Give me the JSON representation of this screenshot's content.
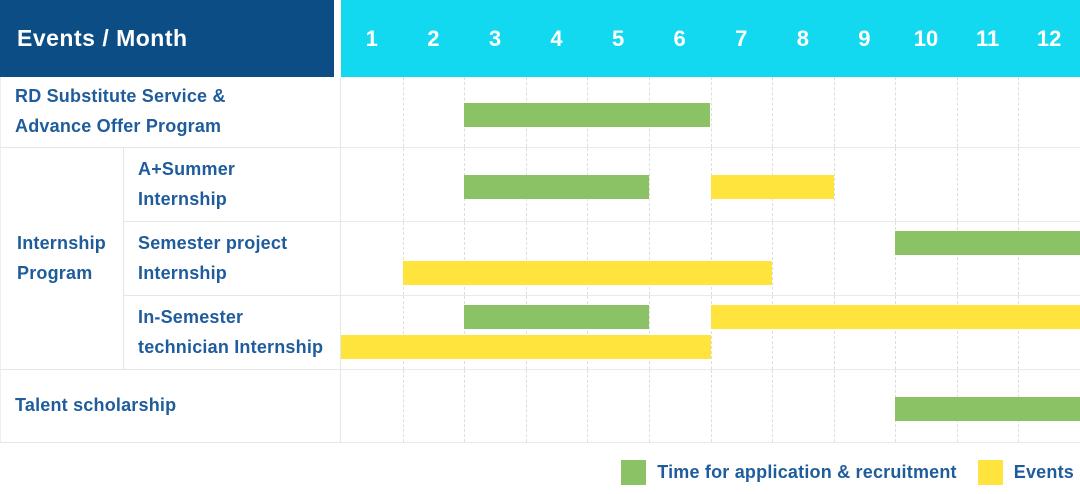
{
  "header": {
    "months": [
      "1",
      "2",
      "3",
      "4",
      "5",
      "6",
      "7",
      "8",
      "9",
      "10",
      "11",
      "12"
    ]
  },
  "colors": {
    "header_bg": "#0d4d86",
    "month_strip_bg": "#12d9f0",
    "label_text": "#1f5c9c",
    "green": "#8ac265",
    "yellow": "#ffe43e"
  },
  "chart_data": {
    "type": "bar",
    "subtype": "gantt",
    "title": "Events / Month",
    "x_axis": {
      "label": "Month",
      "ticks": [
        "1",
        "2",
        "3",
        "4",
        "5",
        "6",
        "7",
        "8",
        "9",
        "10",
        "11",
        "12"
      ],
      "range": [
        1,
        12
      ]
    },
    "grid": true,
    "legend_position": "bottom-right",
    "rows": [
      {
        "group": null,
        "label": "RD Substitute Service & Advance Offer Program",
        "label_display": "RD Substitute Service &\nAdvance Offer Program",
        "bars": [
          {
            "series": "Time for application & recruitment",
            "color": "green",
            "start_month": 3,
            "end_month": 6,
            "lane": "center"
          }
        ]
      },
      {
        "group": "Internship Program",
        "label": "A+Summer Internship",
        "label_display": "A+Summer\nInternship",
        "bars": [
          {
            "series": "Time for application & recruitment",
            "color": "green",
            "start_month": 3,
            "end_month": 5,
            "lane": "center"
          },
          {
            "series": "Events",
            "color": "yellow",
            "start_month": 7,
            "end_month": 8,
            "lane": "center"
          }
        ]
      },
      {
        "group": "Internship Program",
        "label": "Semester project Internship",
        "label_display": "Semester project\nInternship",
        "bars": [
          {
            "series": "Time for application & recruitment",
            "color": "green",
            "start_month": 10,
            "end_month": 12,
            "lane": "top"
          },
          {
            "series": "Events",
            "color": "yellow",
            "start_month": 2,
            "end_month": 7,
            "lane": "bottom"
          }
        ]
      },
      {
        "group": "Internship Program",
        "label": "In-Semester technician Internship",
        "label_display": "In-Semester\ntechnician Internship",
        "bars": [
          {
            "series": "Time for application & recruitment",
            "color": "green",
            "start_month": 3,
            "end_month": 5,
            "lane": "top"
          },
          {
            "series": "Events",
            "color": "yellow",
            "start_month": 7,
            "end_month": 12,
            "lane": "top"
          },
          {
            "series": "Events",
            "color": "yellow",
            "start_month": 1,
            "end_month": 6,
            "lane": "bottom"
          }
        ]
      },
      {
        "group": null,
        "label": "Talent scholarship",
        "label_display": "Talent scholarship",
        "bars": [
          {
            "series": "Time for application & recruitment",
            "color": "green",
            "start_month": 10,
            "end_month": 12,
            "lane": "center"
          }
        ]
      }
    ],
    "group_label_display": "Internship\nProgram",
    "legend": [
      {
        "label": "Time for application & recruitment",
        "color": "#8ac265",
        "color_key": "green"
      },
      {
        "label": "Events",
        "color": "#ffe43e",
        "color_key": "yellow"
      }
    ]
  }
}
